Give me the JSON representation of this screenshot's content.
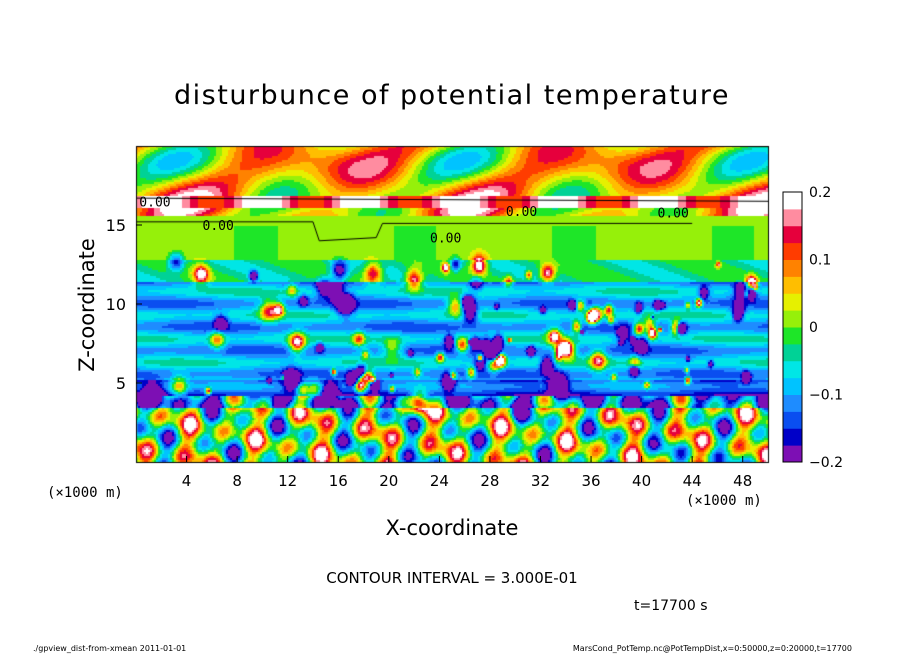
{
  "chart_data": {
    "type": "heatmap",
    "title": "disturbunce of potential temperature",
    "xlabel": "X-coordinate",
    "ylabel": "Z-coordinate",
    "x_unit_left": "(×1000 m)",
    "x_unit_right": "(×1000 m)",
    "xlim": [
      0,
      50
    ],
    "ylim": [
      0,
      20
    ],
    "x_ticks": [
      "4",
      "8",
      "12",
      "16",
      "20",
      "24",
      "28",
      "32",
      "36",
      "40",
      "44",
      "48"
    ],
    "x_tick_values": [
      4,
      8,
      12,
      16,
      20,
      24,
      28,
      32,
      36,
      40,
      44,
      48
    ],
    "y_ticks": [
      "5",
      "10",
      "15"
    ],
    "y_tick_values": [
      5,
      10,
      15
    ],
    "colorbar": {
      "min": -0.2,
      "max": 0.2,
      "tick_labels": [
        "0.2",
        "0.1",
        "0",
        "−0.1",
        "−0.2"
      ],
      "tick_values": [
        0.2,
        0.1,
        0,
        -0.1,
        -0.2
      ],
      "colors": [
        "#7d0fb4",
        "#0000c8",
        "#0a4ef0",
        "#1e8cff",
        "#00c3ff",
        "#00e6e6",
        "#00d296",
        "#1ee628",
        "#96f00a",
        "#e6f000",
        "#ffbe00",
        "#ff8200",
        "#ff3c00",
        "#e6003c",
        "#ff8ca0",
        "#ffffff"
      ]
    },
    "contour_labels": [
      {
        "text": "0.00",
        "x": 1.5,
        "z": 16.5
      },
      {
        "text": "0.00",
        "x": 6.5,
        "z": 15.0
      },
      {
        "text": "0.00",
        "x": 24.5,
        "z": 14.2
      },
      {
        "text": "0.00",
        "x": 30.5,
        "z": 15.9
      },
      {
        "text": "0.00",
        "x": 42.5,
        "z": 15.8
      }
    ],
    "contour_interval_text": "CONTOUR INTERVAL = 3.000E-01",
    "time_text": "t=17700 s"
  },
  "footer": {
    "left": "./gpview_dist-from-xmean  2011-01-01",
    "right": "MarsCond_PotTemp.nc@PotTempDist,x=0:50000,z=0:20000,t=17700"
  }
}
